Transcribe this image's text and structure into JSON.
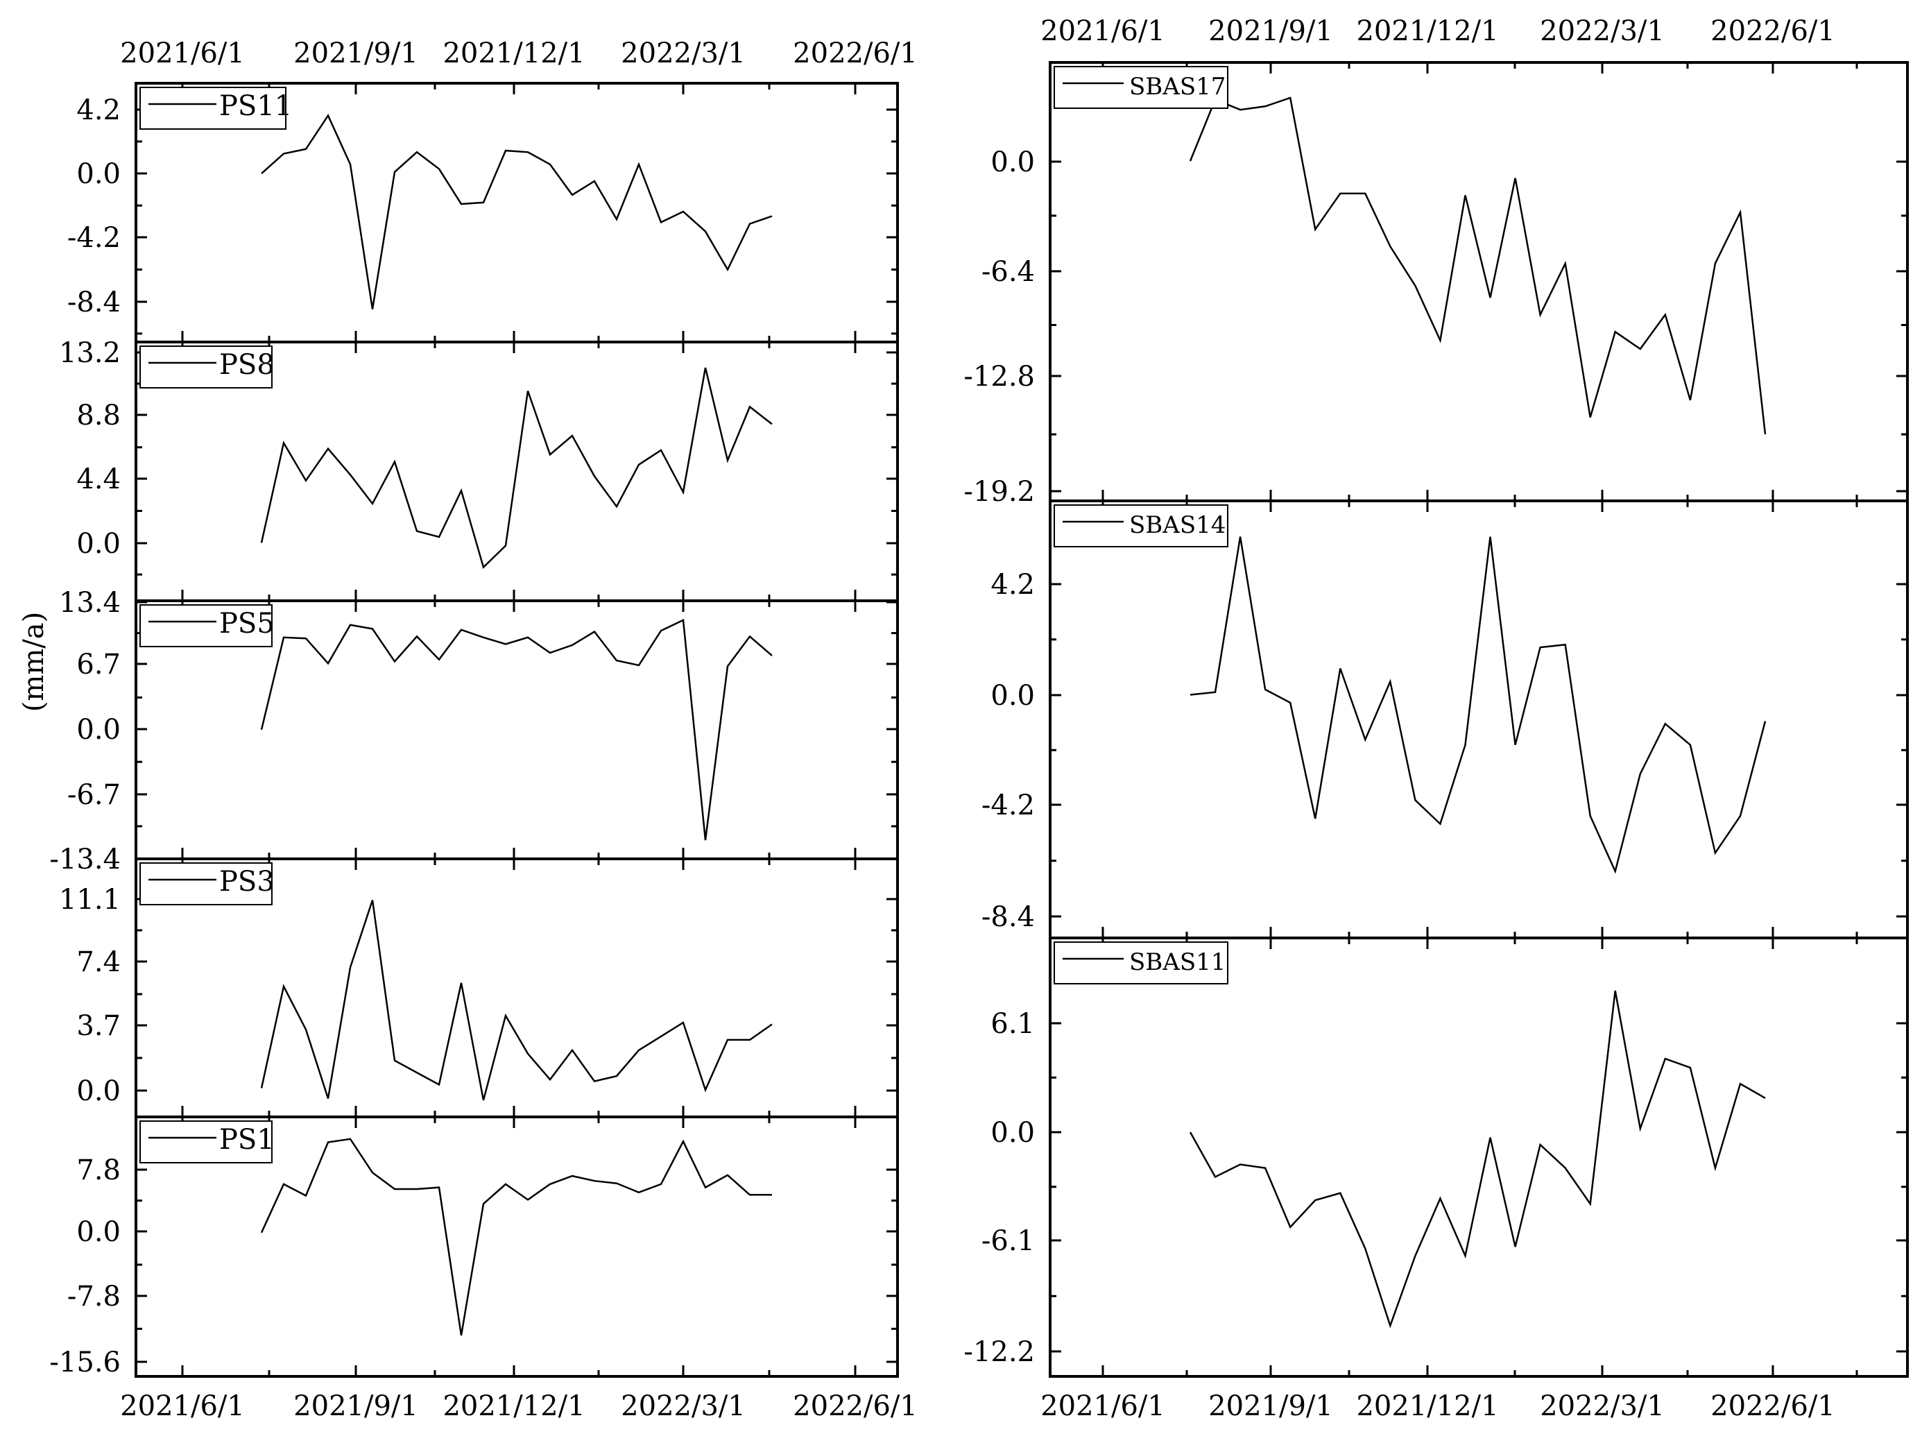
{
  "figure": {
    "ylabel": "(mm/a)",
    "line_color": "#000000",
    "background": "#ffffff"
  },
  "chart_data": [
    {
      "type": "line",
      "name": "PS11",
      "column": "left",
      "x_ticks": [
        "2021/6/1",
        "2021/9/1",
        "2021/12/1",
        "2022/3/1",
        "2022/6/1"
      ],
      "y_ticks": [
        "4.2",
        "0.0",
        "-4.2",
        "-8.4"
      ],
      "ylim": [
        -11.0,
        5.2
      ],
      "series": [
        {
          "name": "PS11",
          "values": [
            0.0,
            1.3,
            1.6,
            3.8,
            0.6,
            -8.9,
            0.1,
            1.4,
            0.3,
            -2.0,
            -1.9,
            1.5,
            1.4,
            0.6,
            -1.4,
            -0.5,
            -3.0,
            0.6,
            -3.2,
            -2.5,
            -3.8,
            -6.3,
            -3.3,
            -2.8
          ]
        }
      ]
    },
    {
      "type": "line",
      "name": "PS8",
      "column": "left",
      "x_ticks": [
        "2021/6/1",
        "2021/9/1",
        "2021/12/1",
        "2022/3/1",
        "2022/6/1"
      ],
      "y_ticks": [
        "13.2",
        "8.8",
        "4.4",
        "0.0"
      ],
      "ylim": [
        -4.0,
        13.2
      ],
      "series": [
        {
          "name": "PS8",
          "values": [
            0.0,
            6.9,
            4.3,
            6.5,
            4.7,
            2.7,
            5.6,
            0.8,
            0.4,
            3.6,
            -1.7,
            -0.2,
            10.5,
            6.1,
            7.4,
            4.6,
            2.5,
            5.4,
            6.4,
            3.5,
            12.1,
            5.7,
            9.4,
            8.2
          ]
        }
      ]
    },
    {
      "type": "line",
      "name": "PS5",
      "column": "left",
      "x_ticks": [
        "2021/6/1",
        "2021/9/1",
        "2021/12/1",
        "2022/3/1",
        "2022/6/1"
      ],
      "y_ticks": [
        "13.4",
        "6.7",
        "0.0",
        "-6.7",
        "-13.4"
      ],
      "ylim": [
        -13.4,
        13.4
      ],
      "series": [
        {
          "name": "PS5",
          "values": [
            0.0,
            9.6,
            9.5,
            6.9,
            10.9,
            10.5,
            7.1,
            9.7,
            7.3,
            10.4,
            9.6,
            8.9,
            9.6,
            8.0,
            8.8,
            10.2,
            7.2,
            6.7,
            10.3,
            11.4,
            -11.5,
            6.6,
            9.7,
            7.7
          ]
        }
      ]
    },
    {
      "type": "line",
      "name": "PS3",
      "column": "left",
      "x_ticks": [
        "2021/6/1",
        "2021/9/1",
        "2021/12/1",
        "2022/3/1",
        "2022/6/1"
      ],
      "y_ticks": [
        "11.1",
        "7.4",
        "3.7",
        "0.0"
      ],
      "ylim": [
        -1.5,
        11.9
      ],
      "series": [
        {
          "name": "PS3",
          "values": [
            0.1,
            6.0,
            3.5,
            -0.5,
            7.1,
            11.0,
            1.7,
            1.0,
            0.3,
            6.2,
            -0.6,
            4.3,
            2.1,
            0.6,
            2.3,
            0.5,
            0.8,
            2.3,
            3.1,
            3.9,
            0.0,
            2.9,
            2.9,
            3.8
          ]
        }
      ]
    },
    {
      "type": "line",
      "name": "PS1",
      "column": "left",
      "x_ticks": [
        "2021/6/1",
        "2021/9/1",
        "2021/12/1",
        "2022/3/1",
        "2022/6/1"
      ],
      "y_ticks": [
        "7.8",
        "0.0",
        "-7.8",
        "-15.6"
      ],
      "ylim": [
        -16.6,
        13.6
      ],
      "series": [
        {
          "name": "PS1",
          "values": [
            0.0,
            5.9,
            4.5,
            11.0,
            11.4,
            7.3,
            5.3,
            5.3,
            5.5,
            -12.5,
            3.5,
            5.9,
            4.0,
            5.9,
            6.9,
            6.3,
            6.0,
            4.9,
            5.9,
            11.1,
            5.5,
            7.0,
            4.6,
            4.6
          ]
        }
      ]
    },
    {
      "type": "line",
      "name": "SBAS17",
      "column": "right",
      "x_ticks": [
        "2021/6/1",
        "2021/9/1",
        "2021/12/1",
        "2022/3/1",
        "2022/6/1"
      ],
      "y_ticks": [
        "0.0",
        "-6.4",
        "-12.8",
        "-19.2"
      ],
      "ylim": [
        -19.2,
        3.9
      ],
      "series": [
        {
          "name": "SBAS17",
          "values": [
            0.0,
            3.6,
            3.0,
            3.2,
            3.7,
            -4.0,
            -1.9,
            -1.9,
            -5.0,
            -7.3,
            -10.5,
            -2.0,
            -8.0,
            -1.0,
            -9.0,
            -6.0,
            -15.0,
            -10.0,
            -11.0,
            -9.0,
            -14.0,
            -6.0,
            -3.0,
            -16.0
          ]
        }
      ]
    },
    {
      "type": "line",
      "name": "SBAS14",
      "column": "right",
      "x_ticks": [
        "2021/6/1",
        "2021/9/1",
        "2021/12/1",
        "2022/3/1",
        "2022/6/1"
      ],
      "y_ticks": [
        "4.2",
        "0.0",
        "-4.2",
        "-8.4"
      ],
      "ylim": [
        -9.0,
        7.6
      ],
      "series": [
        {
          "name": "SBAS14",
          "values": [
            0.0,
            0.1,
            6.0,
            0.2,
            -0.3,
            -4.7,
            1.0,
            -1.7,
            0.5,
            -4.0,
            -4.9,
            -1.9,
            6.0,
            -1.9,
            1.8,
            1.9,
            -4.6,
            -6.7,
            -3.0,
            -1.1,
            -1.9,
            -6.0,
            -4.6,
            -1.0
          ]
        }
      ]
    },
    {
      "type": "line",
      "name": "SBAS11",
      "column": "right",
      "x_ticks": [
        "2021/6/1",
        "2021/9/1",
        "2021/12/1",
        "2022/3/1",
        "2022/6/1"
      ],
      "y_ticks": [
        "6.1",
        "0.0",
        "-6.1",
        "-12.2"
      ],
      "ylim": [
        -13.2,
        10.8
      ],
      "series": [
        {
          "name": "SBAS11",
          "values": [
            0.0,
            -2.5,
            -1.8,
            -2.0,
            -5.3,
            -3.8,
            -3.4,
            -6.5,
            -10.8,
            -6.9,
            -3.7,
            -6.9,
            -0.3,
            -6.4,
            -0.7,
            -2.0,
            -4.0,
            7.9,
            0.2,
            4.1,
            3.6,
            -2.0,
            2.7,
            1.9
          ]
        }
      ]
    }
  ]
}
